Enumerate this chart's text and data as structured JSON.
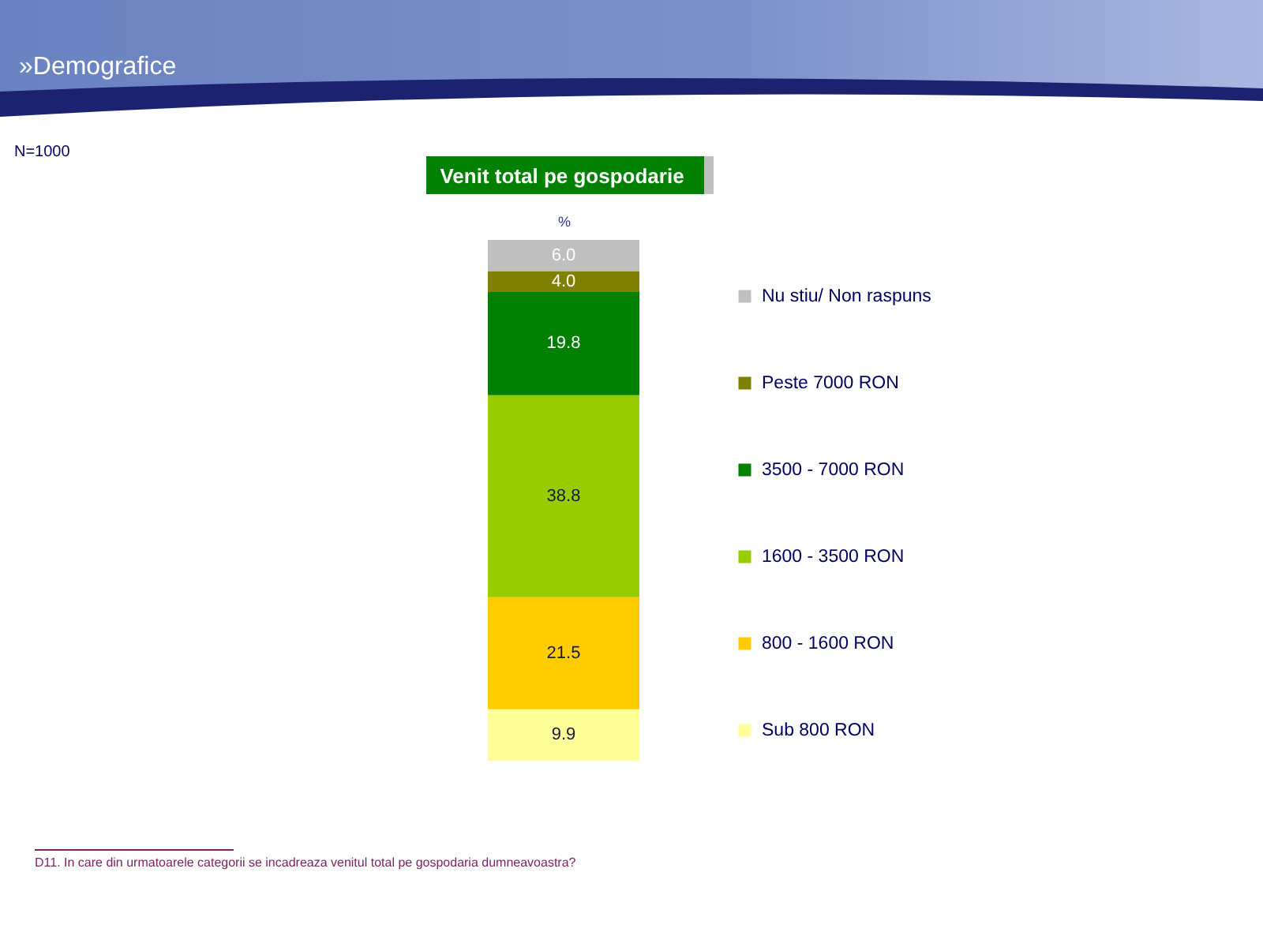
{
  "chart_data": {
    "type": "bar",
    "title": "Venit total pe gospodarie",
    "ylabel": "%",
    "categories": [
      null
    ],
    "stacked": true,
    "series": [
      {
        "name": "Sub 800 RON",
        "color": "#ffff99",
        "values": [
          9.9
        ],
        "value_labels": [
          "9.9"
        ]
      },
      {
        "name": "800 - 1600 RON",
        "color": "#ffcc00",
        "values": [
          21.5
        ],
        "value_labels": [
          "21.5"
        ]
      },
      {
        "name": "1600 - 3500 RON",
        "color": "#99cc00",
        "values": [
          38.8
        ],
        "value_labels": [
          "38.8"
        ]
      },
      {
        "name": "3500 - 7000 RON",
        "color": "#008000",
        "values": [
          19.8
        ],
        "value_labels": [
          "19.8"
        ]
      },
      {
        "name": "Peste 7000 RON",
        "color": "#808000",
        "values": [
          4.0
        ],
        "value_labels": [
          "4.0"
        ]
      },
      {
        "name": "Nu stiu/ Non raspuns",
        "color": "#c0c0c0",
        "values": [
          6.0
        ],
        "value_labels": [
          "6.0"
        ]
      }
    ],
    "legend": "right",
    "annotations": [
      "»Demografice",
      "N=1000",
      "D11. In care din urmatoarele categorii se incadreaza venitul total pe gospodaria dumneavoastra?"
    ]
  }
}
